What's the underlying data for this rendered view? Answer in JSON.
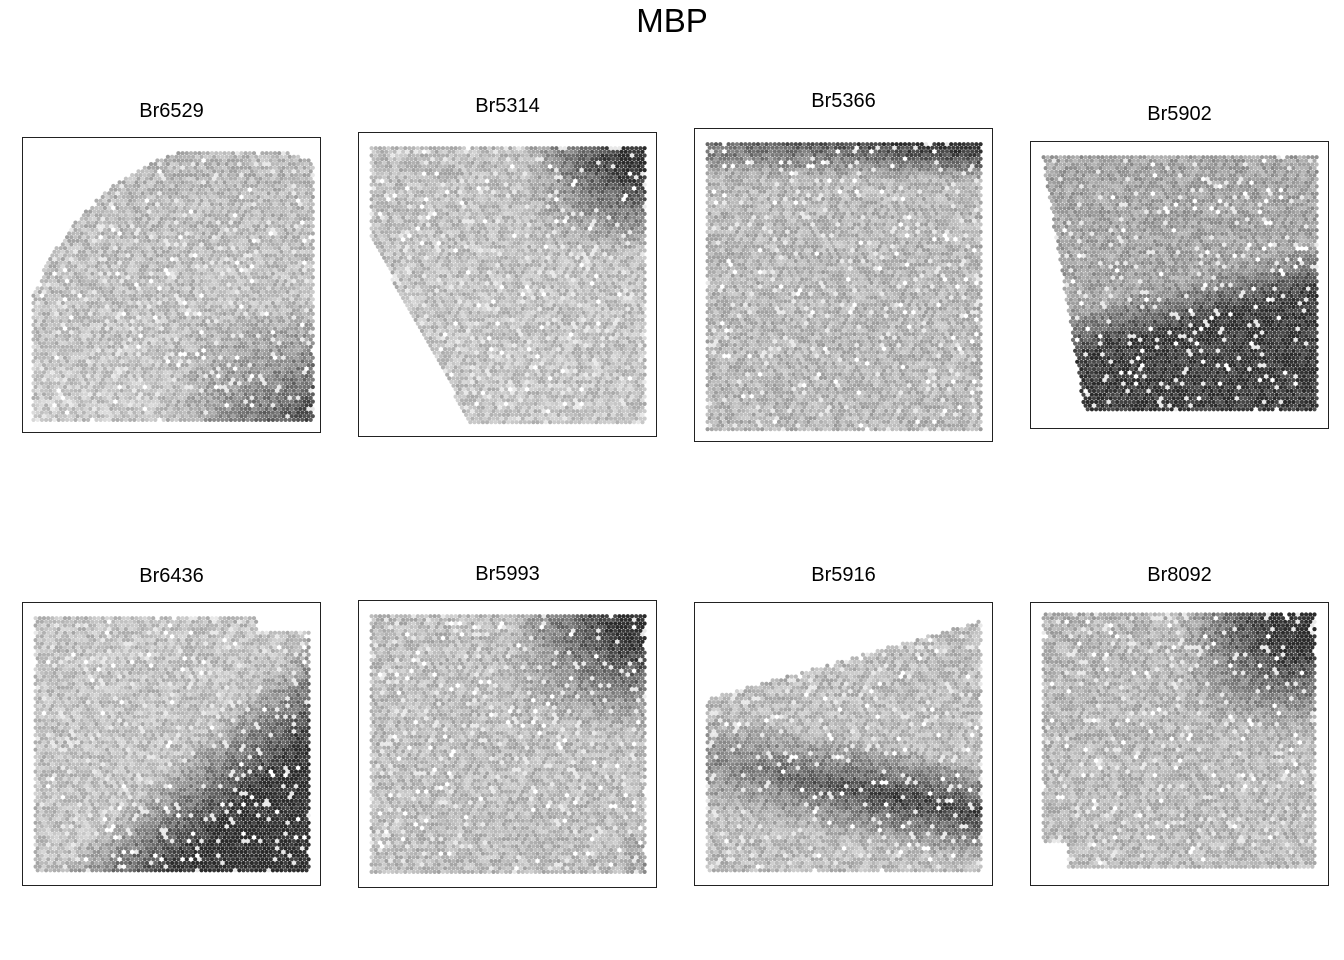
{
  "title": "MBP",
  "chart_data": [
    {
      "type": "heatmap",
      "title": "Br6529",
      "color_scale": [
        "#e6e6e6",
        "#2f2f2f"
      ],
      "axes_visible": false
    },
    {
      "type": "heatmap",
      "title": "Br5314",
      "color_scale": [
        "#e6e6e6",
        "#2f2f2f"
      ],
      "axes_visible": false
    },
    {
      "type": "heatmap",
      "title": "Br5366",
      "color_scale": [
        "#e6e6e6",
        "#2f2f2f"
      ],
      "axes_visible": false
    },
    {
      "type": "heatmap",
      "title": "Br5902",
      "color_scale": [
        "#e6e6e6",
        "#2f2f2f"
      ],
      "axes_visible": false
    },
    {
      "type": "heatmap",
      "title": "Br6436",
      "color_scale": [
        "#e6e6e6",
        "#2f2f2f"
      ],
      "axes_visible": false
    },
    {
      "type": "heatmap",
      "title": "Br5993",
      "color_scale": [
        "#e6e6e6",
        "#2f2f2f"
      ],
      "axes_visible": false
    },
    {
      "type": "heatmap",
      "title": "Br5916",
      "color_scale": [
        "#e6e6e6",
        "#2f2f2f"
      ],
      "axes_visible": false
    },
    {
      "type": "heatmap",
      "title": "Br8092",
      "color_scale": [
        "#e6e6e6",
        "#2f2f2f"
      ],
      "axes_visible": false
    }
  ]
}
